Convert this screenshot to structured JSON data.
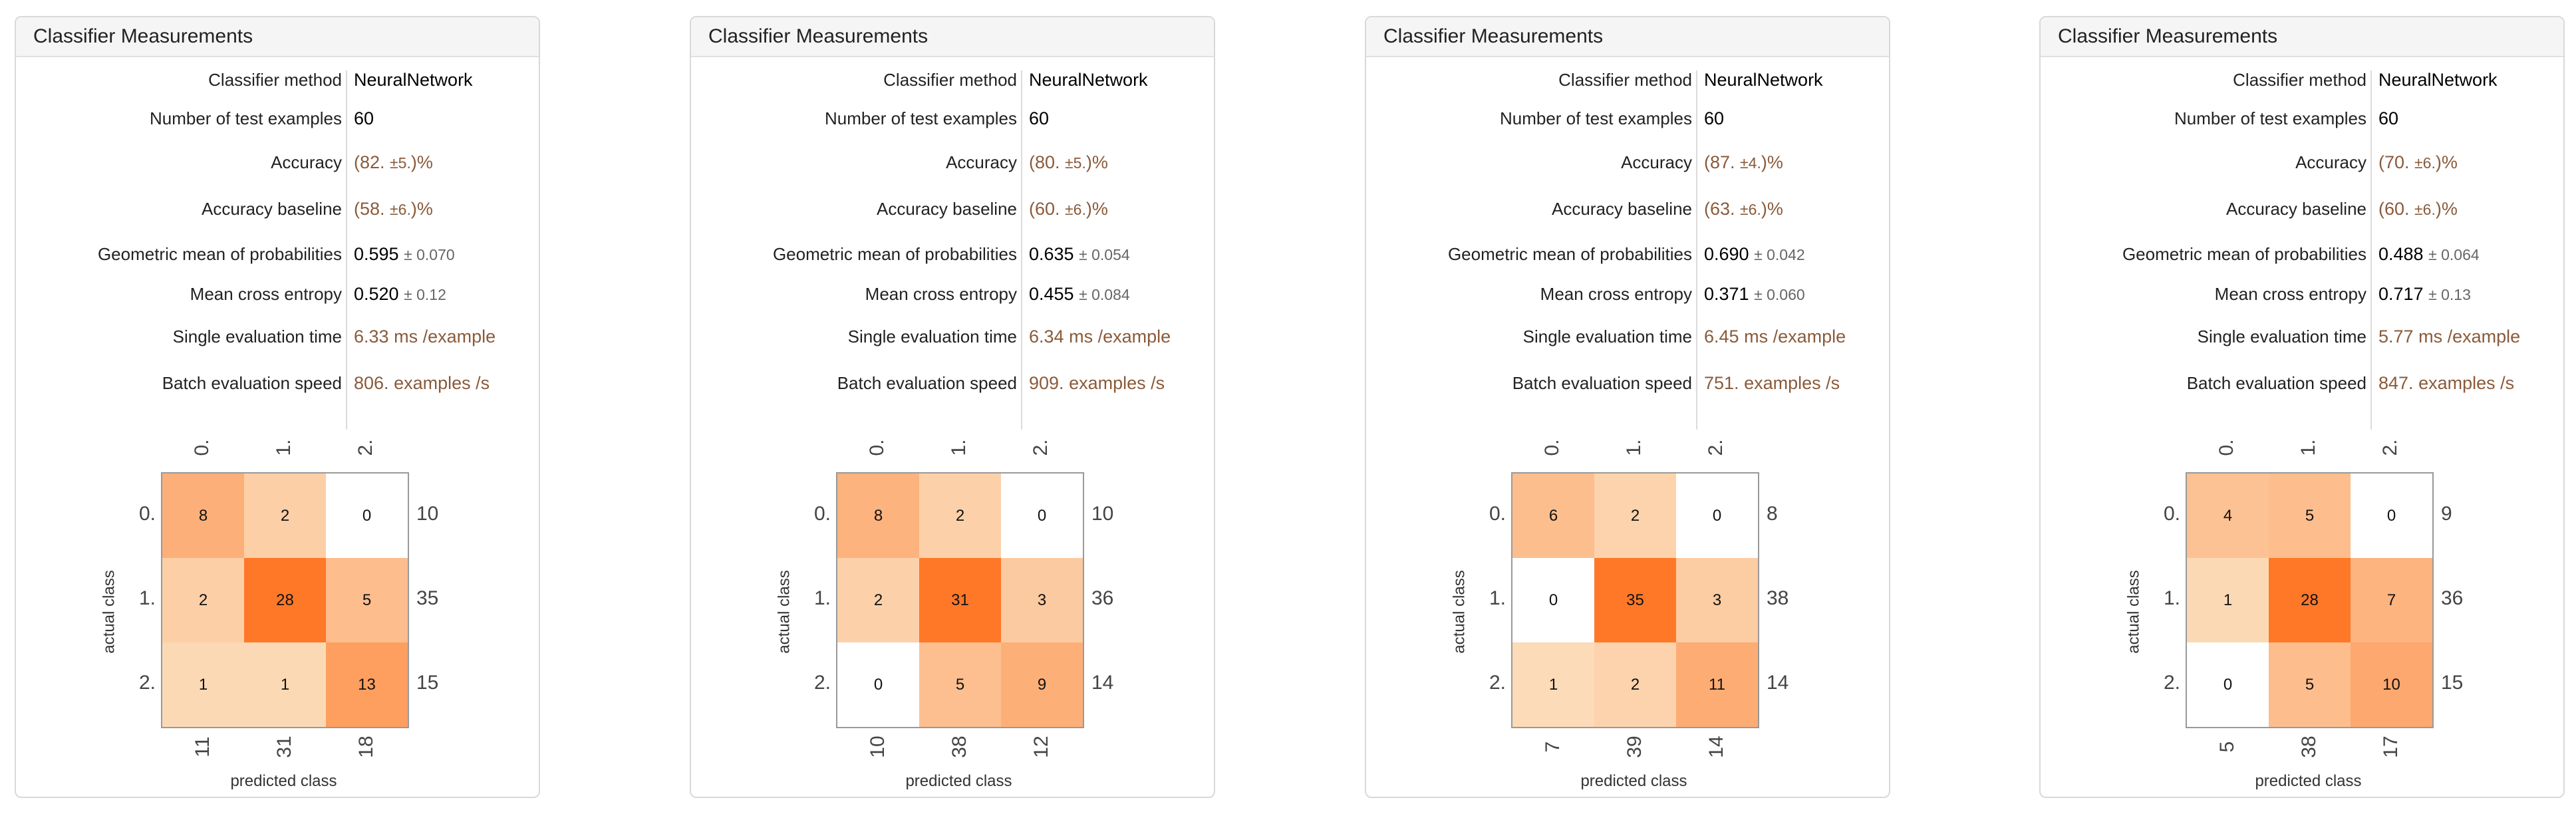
{
  "panels": [
    {
      "title": "Classifier Measurements",
      "method": "NeuralNetwork",
      "test_examples": "60",
      "accuracy": {
        "pre": "(82.",
        "err": "±5.",
        "post": ")%"
      },
      "baseline": {
        "pre": "(58.",
        "err": "±6.",
        "post": ")%"
      },
      "geo_mean": {
        "val": "0.595",
        "err": "± 0.070"
      },
      "cross_entropy": {
        "val": "0.520",
        "err": "± 0.12"
      },
      "eval_time": {
        "val": "6.33",
        "unit": "ms /example"
      },
      "batch_speed": {
        "val": "806.",
        "unit": "examples /s"
      },
      "matrix": [
        [
          8,
          2,
          0
        ],
        [
          2,
          28,
          5
        ],
        [
          1,
          1,
          13
        ]
      ],
      "row_totals": [
        "10",
        "35",
        "15"
      ],
      "col_totals": [
        "11",
        "31",
        "18"
      ]
    },
    {
      "title": "Classifier Measurements",
      "method": "NeuralNetwork",
      "test_examples": "60",
      "accuracy": {
        "pre": "(80.",
        "err": "±5.",
        "post": ")%"
      },
      "baseline": {
        "pre": "(60.",
        "err": "±6.",
        "post": ")%"
      },
      "geo_mean": {
        "val": "0.635",
        "err": "± 0.054"
      },
      "cross_entropy": {
        "val": "0.455",
        "err": "± 0.084"
      },
      "eval_time": {
        "val": "6.34",
        "unit": "ms /example"
      },
      "batch_speed": {
        "val": "909.",
        "unit": "examples /s"
      },
      "matrix": [
        [
          8,
          2,
          0
        ],
        [
          2,
          31,
          3
        ],
        [
          0,
          5,
          9
        ]
      ],
      "row_totals": [
        "10",
        "36",
        "14"
      ],
      "col_totals": [
        "10",
        "38",
        "12"
      ]
    },
    {
      "title": "Classifier Measurements",
      "method": "NeuralNetwork",
      "test_examples": "60",
      "accuracy": {
        "pre": "(87.",
        "err": "±4.",
        "post": ")%"
      },
      "baseline": {
        "pre": "(63.",
        "err": "±6.",
        "post": ")%"
      },
      "geo_mean": {
        "val": "0.690",
        "err": "± 0.042"
      },
      "cross_entropy": {
        "val": "0.371",
        "err": "± 0.060"
      },
      "eval_time": {
        "val": "6.45",
        "unit": "ms /example"
      },
      "batch_speed": {
        "val": "751.",
        "unit": "examples /s"
      },
      "matrix": [
        [
          6,
          2,
          0
        ],
        [
          0,
          35,
          3
        ],
        [
          1,
          2,
          11
        ]
      ],
      "row_totals": [
        "8",
        "38",
        "14"
      ],
      "col_totals": [
        "7",
        "39",
        "14"
      ]
    },
    {
      "title": "Classifier Measurements",
      "method": "NeuralNetwork",
      "test_examples": "60",
      "accuracy": {
        "pre": "(70.",
        "err": "±6.",
        "post": ")%"
      },
      "baseline": {
        "pre": "(60.",
        "err": "±6.",
        "post": ")%"
      },
      "geo_mean": {
        "val": "0.488",
        "err": "± 0.064"
      },
      "cross_entropy": {
        "val": "0.717",
        "err": "± 0.13"
      },
      "eval_time": {
        "val": "5.77",
        "unit": "ms /example"
      },
      "batch_speed": {
        "val": "847.",
        "unit": "examples /s"
      },
      "matrix": [
        [
          4,
          5,
          0
        ],
        [
          1,
          28,
          7
        ],
        [
          0,
          5,
          10
        ]
      ],
      "row_totals": [
        "9",
        "36",
        "15"
      ],
      "col_totals": [
        "5",
        "38",
        "17"
      ]
    }
  ],
  "labels": {
    "method": "Classifier method",
    "test_examples": "Number of test examples",
    "accuracy": "Accuracy",
    "baseline": "Accuracy baseline",
    "geo_mean": "Geometric mean of probabilities",
    "cross_entropy": "Mean cross entropy",
    "eval_time": "Single evaluation time",
    "batch_speed": "Batch evaluation speed",
    "actual_class": "actual class",
    "predicted_class": "predicted class"
  },
  "class_labels": [
    "0.",
    "1.",
    "2."
  ],
  "colors": {
    "accent": "#ff7828",
    "light": "#fbefd6",
    "brown_text": "#8a5a3a"
  }
}
